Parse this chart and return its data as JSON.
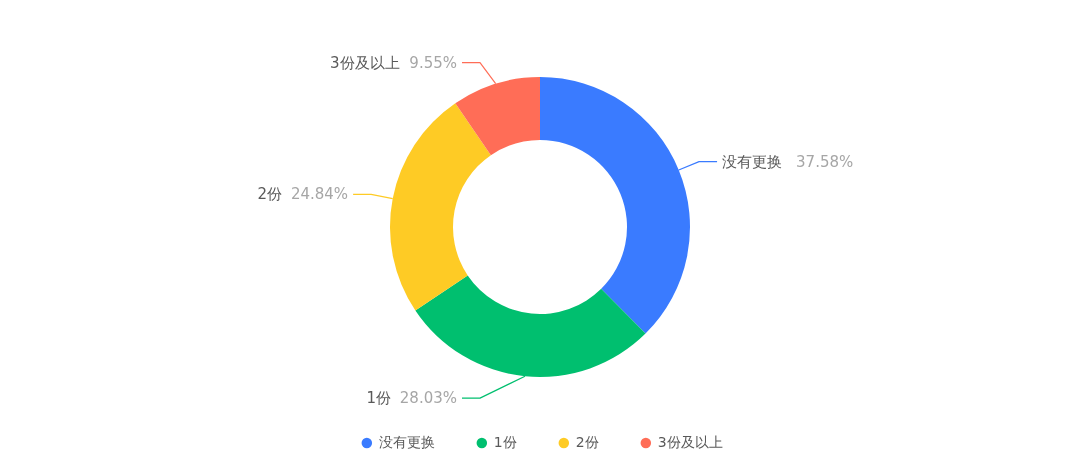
{
  "chart_data": {
    "type": "donut",
    "categories": [
      "没有更换",
      "1份",
      "2份",
      "3份及以上"
    ],
    "values": [
      37.58,
      28.03,
      24.84,
      9.55
    ],
    "colors": [
      "#3a7bff",
      "#00bf6f",
      "#fecb25",
      "#ff6d57"
    ],
    "value_labels": [
      "37.58%",
      "28.03%",
      "24.84%",
      "9.55%"
    ],
    "legend": "bottom"
  }
}
